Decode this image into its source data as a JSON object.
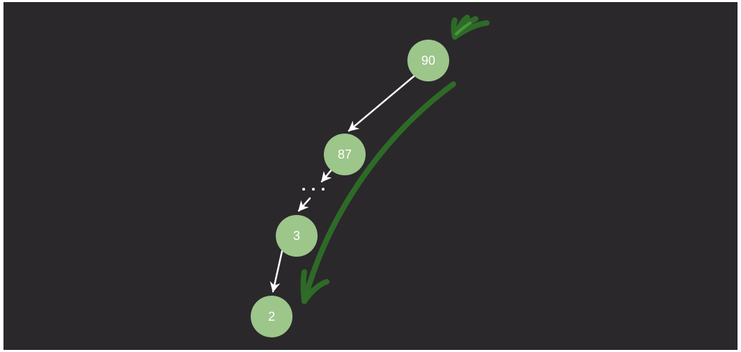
{
  "diagram": {
    "nodes": [
      {
        "id": "n90",
        "label": "90"
      },
      {
        "id": "n87",
        "label": "87"
      },
      {
        "id": "n3",
        "label": "3"
      },
      {
        "id": "n2",
        "label": "2"
      }
    ],
    "edges": [
      {
        "from": "n90",
        "to": "n87"
      },
      {
        "from": "n87",
        "to": "ellipsis"
      },
      {
        "from": "ellipsis",
        "to": "n3"
      },
      {
        "from": "n3",
        "to": "n2"
      }
    ],
    "ellipsis": "...",
    "colors": {
      "background": "#2a282b",
      "node_fill": "#9dc68a",
      "node_text": "#ffffff",
      "edge": "#ffffff",
      "annotation_stroke": "#2e6e27"
    }
  }
}
